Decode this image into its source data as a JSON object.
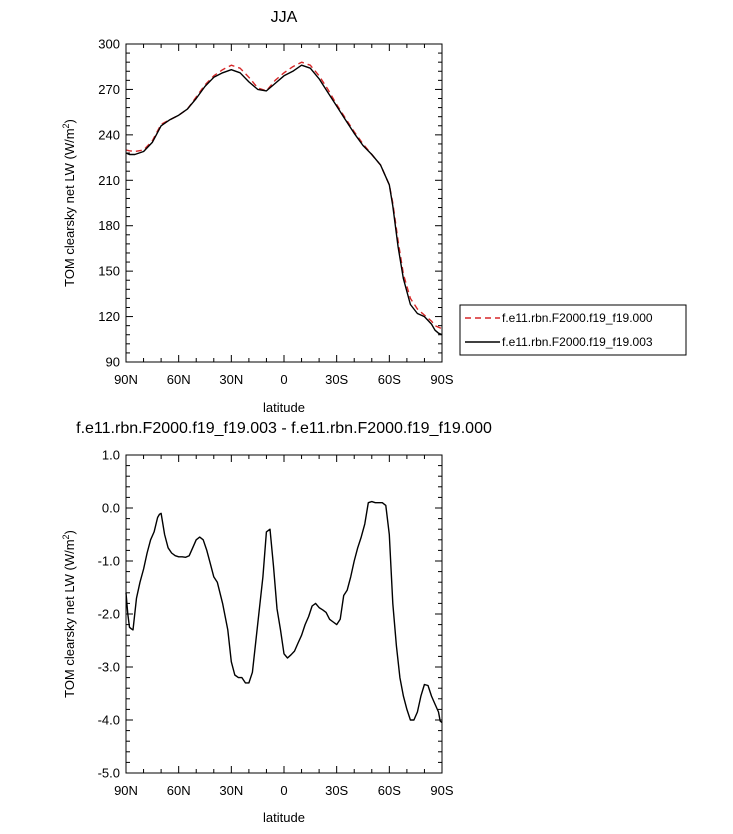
{
  "chart_data": [
    {
      "type": "line",
      "title": "JJA",
      "xlabel": "latitude",
      "ylabel": "TOM clearsky net LW (W/m²)",
      "ylabel_parts": [
        "TOM clearsky net LW (W/m",
        "2",
        ")"
      ],
      "xlim": [
        90,
        -90
      ],
      "ylim": [
        90,
        300
      ],
      "x_ticks": [
        {
          "value": 90,
          "label": "90N"
        },
        {
          "value": 60,
          "label": "60N"
        },
        {
          "value": 30,
          "label": "30N"
        },
        {
          "value": 0,
          "label": "0"
        },
        {
          "value": -30,
          "label": "30S"
        },
        {
          "value": -60,
          "label": "60S"
        },
        {
          "value": -90,
          "label": "90S"
        }
      ],
      "y_ticks": [
        {
          "value": 90,
          "label": "90"
        },
        {
          "value": 120,
          "label": "120"
        },
        {
          "value": 150,
          "label": "150"
        },
        {
          "value": 180,
          "label": "180"
        },
        {
          "value": 210,
          "label": "210"
        },
        {
          "value": 240,
          "label": "240"
        },
        {
          "value": 270,
          "label": "270"
        },
        {
          "value": 300,
          "label": "300"
        }
      ],
      "legend_position": "right",
      "series": [
        {
          "name": "f.e11.rbn.F2000.f19_f19.000",
          "color": "#d62728",
          "dash": "dashed",
          "x": [
            90,
            88,
            85,
            80,
            75,
            70,
            65,
            60,
            55,
            50,
            45,
            40,
            35,
            30,
            25,
            20,
            15,
            10,
            5,
            0,
            -5,
            -10,
            -15,
            -20,
            -25,
            -30,
            -35,
            -40,
            -45,
            -50,
            -55,
            -60,
            -62,
            -65,
            -68,
            -72,
            -76,
            -80,
            -84,
            -86,
            -88,
            -90
          ],
          "y": [
            230,
            229.5,
            229,
            230,
            236,
            247,
            250,
            253,
            257,
            265,
            273,
            279,
            283,
            286,
            284,
            278,
            271,
            269,
            276,
            281,
            285,
            288,
            286,
            279,
            270,
            260,
            251,
            242,
            234,
            227,
            220,
            207,
            195,
            170,
            148,
            132,
            125,
            121,
            117,
            114,
            113,
            112
          ]
        },
        {
          "name": "f.e11.rbn.F2000.f19_f19.003",
          "color": "#000000",
          "dash": "solid",
          "x": [
            90,
            88,
            85,
            80,
            75,
            70,
            65,
            60,
            55,
            50,
            45,
            40,
            35,
            30,
            25,
            20,
            15,
            10,
            5,
            0,
            -5,
            -10,
            -15,
            -20,
            -25,
            -30,
            -35,
            -40,
            -45,
            -50,
            -55,
            -60,
            -62,
            -65,
            -68,
            -72,
            -76,
            -80,
            -84,
            -86,
            -88,
            -90
          ],
          "y": [
            228,
            227,
            227,
            229,
            235,
            246,
            250,
            253,
            257,
            264,
            272,
            278,
            281,
            283,
            281,
            275,
            270,
            269,
            274,
            279,
            282,
            286,
            284,
            277,
            268,
            259,
            250,
            241,
            233,
            227,
            220,
            207,
            193,
            166,
            145,
            128,
            122,
            120,
            115,
            111,
            109,
            108
          ]
        }
      ]
    },
    {
      "type": "line",
      "title": "f.e11.rbn.F2000.f19_f19.003 - f.e11.rbn.F2000.f19_f19.000",
      "xlabel": "latitude",
      "ylabel": "TOM clearsky net LW (W/m²)",
      "ylabel_parts": [
        "TOM clearsky net LW (W/m",
        "2",
        ")"
      ],
      "xlim": [
        90,
        -90
      ],
      "ylim": [
        -5,
        1
      ],
      "x_ticks": [
        {
          "value": 90,
          "label": "90N"
        },
        {
          "value": 60,
          "label": "60N"
        },
        {
          "value": 30,
          "label": "30N"
        },
        {
          "value": 0,
          "label": "0"
        },
        {
          "value": -30,
          "label": "30S"
        },
        {
          "value": -60,
          "label": "60S"
        },
        {
          "value": -90,
          "label": "90S"
        }
      ],
      "y_ticks": [
        {
          "value": 1,
          "label": "1.0"
        },
        {
          "value": 0,
          "label": "0.0"
        },
        {
          "value": -1,
          "label": "-1.0"
        },
        {
          "value": -2,
          "label": "-2.0"
        },
        {
          "value": -3,
          "label": "-3.0"
        },
        {
          "value": -4,
          "label": "-4.0"
        },
        {
          "value": -5,
          "label": "-5.0"
        }
      ],
      "series": [
        {
          "color": "#000000",
          "dash": "solid",
          "x": [
            90,
            89,
            88,
            87,
            86,
            84,
            82,
            80,
            78,
            76,
            74,
            72,
            71,
            70,
            68,
            66,
            64,
            62,
            60,
            58,
            56,
            54,
            52,
            50,
            48,
            46,
            44,
            42,
            40,
            38,
            35,
            32,
            30,
            28,
            26,
            24,
            22,
            20,
            18,
            16,
            14,
            12,
            10,
            8,
            6,
            4,
            2,
            0,
            -2,
            -4,
            -6,
            -8,
            -10,
            -12,
            -14,
            -16,
            -18,
            -20,
            -22,
            -24,
            -26,
            -28,
            -30,
            -32,
            -34,
            -36,
            -38,
            -40,
            -42,
            -44,
            -46,
            -48,
            -50,
            -52,
            -54,
            -56,
            -58,
            -60,
            -62,
            -64,
            -66,
            -68,
            -70,
            -72,
            -74,
            -76,
            -78,
            -80,
            -82,
            -84,
            -86,
            -88,
            -89,
            -90
          ],
          "y": [
            -1.6,
            -2.0,
            -2.25,
            -2.28,
            -2.3,
            -1.7,
            -1.4,
            -1.15,
            -0.85,
            -0.6,
            -0.45,
            -0.18,
            -0.12,
            -0.1,
            -0.5,
            -0.75,
            -0.85,
            -0.9,
            -0.92,
            -0.92,
            -0.93,
            -0.9,
            -0.75,
            -0.6,
            -0.55,
            -0.6,
            -0.8,
            -1.05,
            -1.3,
            -1.4,
            -1.8,
            -2.3,
            -2.9,
            -3.15,
            -3.2,
            -3.2,
            -3.3,
            -3.3,
            -3.1,
            -2.5,
            -1.9,
            -1.3,
            -0.45,
            -0.4,
            -1.1,
            -1.9,
            -2.3,
            -2.75,
            -2.83,
            -2.77,
            -2.7,
            -2.55,
            -2.4,
            -2.2,
            -2.05,
            -1.85,
            -1.8,
            -1.88,
            -1.92,
            -1.97,
            -2.1,
            -2.15,
            -2.2,
            -2.1,
            -1.65,
            -1.55,
            -1.3,
            -1.0,
            -0.75,
            -0.55,
            -0.3,
            0.1,
            0.12,
            0.1,
            0.1,
            0.1,
            0.05,
            -0.5,
            -1.8,
            -2.6,
            -3.2,
            -3.55,
            -3.8,
            -4.0,
            -4.0,
            -3.85,
            -3.55,
            -3.33,
            -3.35,
            -3.55,
            -3.7,
            -3.85,
            -4.02,
            -4.05
          ]
        }
      ]
    }
  ]
}
